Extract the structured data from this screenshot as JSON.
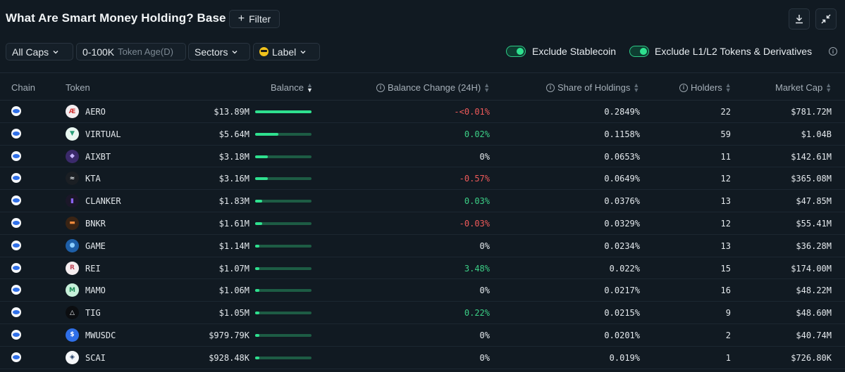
{
  "header": {
    "title": "What Are Smart Money Holding? Base",
    "filter_label": "Filter"
  },
  "filters": {
    "caps": "All Caps",
    "token_age_value": "0-100K",
    "token_age_label": "Token Age(D)",
    "sectors": "Sectors",
    "label": "Label",
    "exclude_stablecoin": "Exclude Stablecoin",
    "exclude_l1l2": "Exclude L1/L2 Tokens & Derivatives"
  },
  "columns": {
    "chain": "Chain",
    "token": "Token",
    "balance": "Balance",
    "balance_change": "Balance Change (24H)",
    "share": "Share of Holdings",
    "holders": "Holders",
    "market_cap": "Market Cap"
  },
  "colors": {
    "positive": "#3ccf86",
    "negative": "#ef5a5a",
    "accent": "#2fe08f"
  },
  "rows": [
    {
      "token": "AERO",
      "icon": "aero-icon",
      "balance": "$13.89M",
      "bar": 1.0,
      "change": "-<0.01%",
      "dir": "neg",
      "share": "0.2849%",
      "holders": "22",
      "mcap": "$781.72M"
    },
    {
      "token": "VIRTUAL",
      "icon": "virtual-icon",
      "balance": "$5.64M",
      "bar": 0.41,
      "change": "0.02%",
      "dir": "pos",
      "share": "0.1158%",
      "holders": "59",
      "mcap": "$1.04B"
    },
    {
      "token": "AIXBT",
      "icon": "aixbt-icon",
      "balance": "$3.18M",
      "bar": 0.23,
      "change": "0%",
      "dir": "neu",
      "share": "0.0653%",
      "holders": "11",
      "mcap": "$142.61M"
    },
    {
      "token": "KTA",
      "icon": "kta-icon",
      "balance": "$3.16M",
      "bar": 0.23,
      "change": "-0.57%",
      "dir": "neg",
      "share": "0.0649%",
      "holders": "12",
      "mcap": "$365.08M"
    },
    {
      "token": "CLANKER",
      "icon": "clanker-icon",
      "balance": "$1.83M",
      "bar": 0.13,
      "change": "0.03%",
      "dir": "pos",
      "share": "0.0376%",
      "holders": "13",
      "mcap": "$47.85M"
    },
    {
      "token": "BNKR",
      "icon": "bnkr-icon",
      "balance": "$1.61M",
      "bar": 0.12,
      "change": "-0.03%",
      "dir": "neg",
      "share": "0.0329%",
      "holders": "12",
      "mcap": "$55.41M"
    },
    {
      "token": "GAME",
      "icon": "game-icon",
      "balance": "$1.14M",
      "bar": 0.08,
      "change": "0%",
      "dir": "neu",
      "share": "0.0234%",
      "holders": "13",
      "mcap": "$36.28M"
    },
    {
      "token": "REI",
      "icon": "rei-icon",
      "balance": "$1.07M",
      "bar": 0.08,
      "change": "3.48%",
      "dir": "pos",
      "share": "0.022%",
      "holders": "15",
      "mcap": "$174.00M"
    },
    {
      "token": "MAMO",
      "icon": "mamo-icon",
      "balance": "$1.06M",
      "bar": 0.08,
      "change": "0%",
      "dir": "neu",
      "share": "0.0217%",
      "holders": "16",
      "mcap": "$48.22M"
    },
    {
      "token": "TIG",
      "icon": "tig-icon",
      "balance": "$1.05M",
      "bar": 0.08,
      "change": "0.22%",
      "dir": "pos",
      "share": "0.0215%",
      "holders": "9",
      "mcap": "$48.60M"
    },
    {
      "token": "MWUSDC",
      "icon": "mwusdc-icon",
      "balance": "$979.79K",
      "bar": 0.07,
      "change": "0%",
      "dir": "neu",
      "share": "0.0201%",
      "holders": "2",
      "mcap": "$40.74M"
    },
    {
      "token": "SCAI",
      "icon": "scai-icon",
      "balance": "$928.48K",
      "bar": 0.07,
      "change": "0%",
      "dir": "neu",
      "share": "0.019%",
      "holders": "1",
      "mcap": "$726.80K"
    }
  ]
}
